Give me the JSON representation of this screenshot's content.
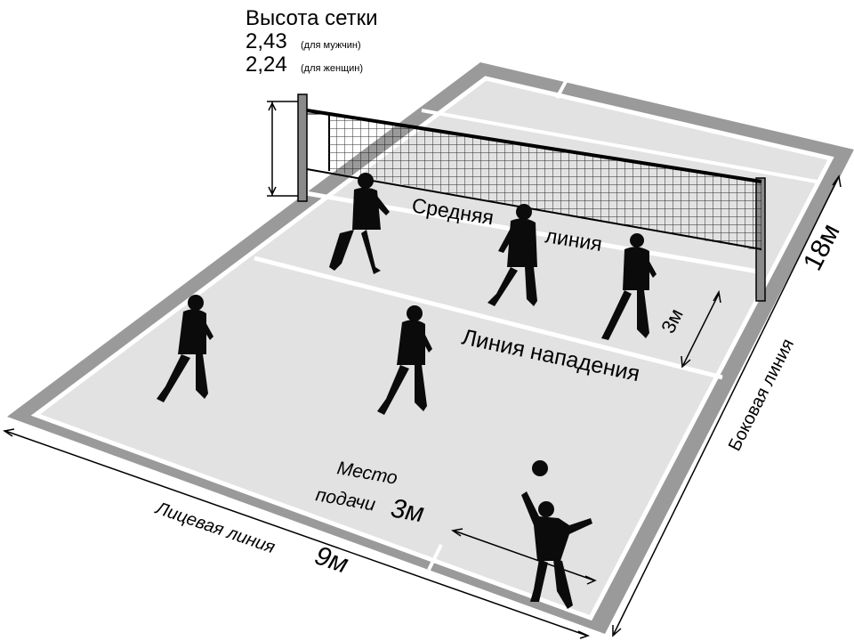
{
  "net_height": {
    "title": "Высота сетки",
    "men_value": "2,43",
    "men_note": "(для мужчин)",
    "women_value": "2,24",
    "women_note": "(для женщин)"
  },
  "court_lines": {
    "center_line_word1": "Средняя",
    "center_line_word2": "линия",
    "attack_line": "Линия нападения",
    "attack_zone_depth": "3м",
    "serve_zone_word1": "Место",
    "serve_zone_word2": "подачи",
    "serve_zone_width": "3м",
    "end_line": "Лицевая линия",
    "end_line_length": "9м",
    "side_line": "Боковая линия",
    "side_line_length": "18м"
  },
  "colors": {
    "surround": "#9a9a9a",
    "court": "#e2e2e2",
    "lines": "#ffffff",
    "players": "#0b0b0b"
  }
}
